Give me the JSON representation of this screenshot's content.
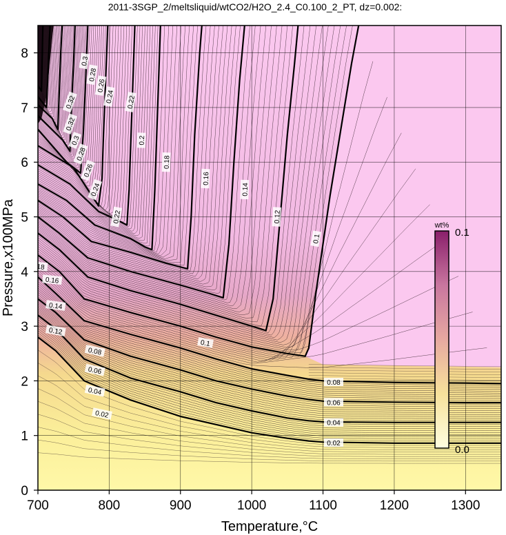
{
  "chart_data": {
    "type": "contour",
    "title": "2011-3SGP_2/meltsliquid/wtCO2/H2O_2.4_C0.100_2_PT, dz=0.002:",
    "xlabel": "Temperature,°C",
    "ylabel": "Pressure,x100MPa",
    "xlim": [
      700,
      1350
    ],
    "ylim": [
      0,
      8.5
    ],
    "x_ticks": [
      700,
      800,
      900,
      1000,
      1100,
      1200,
      1300
    ],
    "y_ticks": [
      0,
      1,
      2,
      3,
      4,
      5,
      6,
      7,
      8
    ],
    "grid": true,
    "colorbar": {
      "unit": "wt%",
      "max_label": "0.1",
      "min_label": "0.0",
      "range": [
        0.0,
        0.1
      ],
      "colors": [
        "#fffde0",
        "#f7e29b",
        "#e7a9a0",
        "#c9769f",
        "#8a1f6b"
      ]
    },
    "high_value_fill_color": "#fbc8ef",
    "contour_interval": 0.002,
    "labeled_contours": [
      {
        "level": 0.02,
        "label": "0.02",
        "points": [
          [
            700,
            2.8
          ],
          [
            725,
            2.55
          ],
          [
            765,
            2.0
          ],
          [
            830,
            1.65
          ],
          [
            900,
            1.35
          ],
          [
            950,
            1.2
          ],
          [
            1000,
            1.05
          ],
          [
            1050,
            0.95
          ],
          [
            1080,
            0.9
          ],
          [
            1100,
            0.88
          ],
          [
            1200,
            0.86
          ],
          [
            1300,
            0.86
          ],
          [
            1350,
            0.86
          ]
        ]
      },
      {
        "level": 0.04,
        "label": "0.04",
        "points": [
          [
            700,
            3.2
          ],
          [
            725,
            2.95
          ],
          [
            765,
            2.4
          ],
          [
            830,
            2.05
          ],
          [
            900,
            1.8
          ],
          [
            950,
            1.6
          ],
          [
            1000,
            1.45
          ],
          [
            1050,
            1.32
          ],
          [
            1080,
            1.27
          ],
          [
            1100,
            1.25
          ],
          [
            1200,
            1.24
          ],
          [
            1300,
            1.24
          ],
          [
            1350,
            1.24
          ]
        ]
      },
      {
        "level": 0.06,
        "label": "0.06",
        "points": [
          [
            700,
            3.5
          ],
          [
            725,
            3.25
          ],
          [
            765,
            2.75
          ],
          [
            830,
            2.45
          ],
          [
            900,
            2.2
          ],
          [
            950,
            2.0
          ],
          [
            1000,
            1.85
          ],
          [
            1050,
            1.72
          ],
          [
            1080,
            1.66
          ],
          [
            1100,
            1.63
          ],
          [
            1200,
            1.61
          ],
          [
            1300,
            1.6
          ],
          [
            1350,
            1.6
          ]
        ]
      },
      {
        "level": 0.08,
        "label": "0.08",
        "points": [
          [
            700,
            3.9
          ],
          [
            725,
            3.6
          ],
          [
            765,
            3.1
          ],
          [
            830,
            2.85
          ],
          [
            900,
            2.6
          ],
          [
            950,
            2.4
          ],
          [
            1000,
            2.22
          ],
          [
            1050,
            2.1
          ],
          [
            1080,
            2.03
          ],
          [
            1100,
            2.0
          ],
          [
            1200,
            1.97
          ],
          [
            1300,
            1.96
          ],
          [
            1350,
            1.95
          ]
        ]
      },
      {
        "level": 0.1,
        "label": "0.1",
        "points": [
          [
            700,
            4.3
          ],
          [
            730,
            4.0
          ],
          [
            765,
            3.5
          ],
          [
            830,
            3.25
          ],
          [
            900,
            3.0
          ],
          [
            950,
            2.8
          ],
          [
            1000,
            2.62
          ],
          [
            1050,
            2.5
          ],
          [
            1075,
            2.45
          ],
          [
            1080,
            2.6
          ],
          [
            1090,
            3.6
          ],
          [
            1100,
            4.5
          ],
          [
            1110,
            5.4
          ],
          [
            1125,
            6.6
          ],
          [
            1140,
            7.8
          ],
          [
            1150,
            8.5
          ]
        ]
      },
      {
        "level": 0.12,
        "label": "0.12",
        "points": [
          [
            700,
            4.7
          ],
          [
            730,
            4.4
          ],
          [
            770,
            3.9
          ],
          [
            830,
            3.65
          ],
          [
            900,
            3.4
          ],
          [
            950,
            3.2
          ],
          [
            1000,
            3.0
          ],
          [
            1020,
            2.92
          ],
          [
            1030,
            3.5
          ],
          [
            1040,
            5.0
          ],
          [
            1050,
            6.5
          ],
          [
            1060,
            7.8
          ],
          [
            1065,
            8.5
          ]
        ]
      },
      {
        "level": 0.14,
        "label": "0.14",
        "points": [
          [
            700,
            5.0
          ],
          [
            730,
            4.7
          ],
          [
            770,
            4.25
          ],
          [
            830,
            4.0
          ],
          [
            900,
            3.75
          ],
          [
            940,
            3.6
          ],
          [
            960,
            3.52
          ],
          [
            968,
            4.5
          ],
          [
            975,
            6.0
          ],
          [
            983,
            7.5
          ],
          [
            990,
            8.5
          ]
        ]
      },
      {
        "level": 0.16,
        "label": "0.16",
        "points": [
          [
            700,
            5.3
          ],
          [
            735,
            5.0
          ],
          [
            775,
            4.55
          ],
          [
            830,
            4.35
          ],
          [
            880,
            4.15
          ],
          [
            910,
            4.05
          ],
          [
            915,
            5.0
          ],
          [
            920,
            6.5
          ],
          [
            927,
            8.0
          ],
          [
            930,
            8.5
          ]
        ]
      },
      {
        "level": 0.18,
        "label": "0.18",
        "points": [
          [
            700,
            5.6
          ],
          [
            740,
            5.3
          ],
          [
            780,
            4.85
          ],
          [
            830,
            4.6
          ],
          [
            850,
            4.45
          ],
          [
            860,
            4.4
          ],
          [
            864,
            5.5
          ],
          [
            868,
            7.0
          ],
          [
            872,
            8.5
          ]
        ]
      },
      {
        "level": 0.2,
        "label": "0.2",
        "points": [
          [
            700,
            5.95
          ],
          [
            745,
            5.6
          ],
          [
            785,
            5.1
          ],
          [
            810,
            4.95
          ],
          [
            825,
            4.85
          ],
          [
            828,
            5.5
          ],
          [
            832,
            7.0
          ],
          [
            836,
            8.5
          ]
        ]
      },
      {
        "level": 0.22,
        "label": "0.22",
        "points": [
          [
            700,
            6.3
          ],
          [
            750,
            5.9
          ],
          [
            785,
            5.2
          ],
          [
            790,
            5.7
          ],
          [
            792,
            6.5
          ],
          [
            795,
            7.5
          ],
          [
            798,
            8.5
          ]
        ]
      },
      {
        "level": 0.24,
        "label": "0.24",
        "points": [
          [
            700,
            6.6
          ],
          [
            740,
            6.0
          ],
          [
            760,
            5.8
          ],
          [
            764,
            6.6
          ],
          [
            767,
            7.5
          ],
          [
            770,
            8.5
          ]
        ]
      },
      {
        "level": 0.26,
        "label": "0.26",
        "points": [
          [
            700,
            6.85
          ],
          [
            735,
            6.4
          ],
          [
            745,
            6.2
          ],
          [
            747,
            7.0
          ],
          [
            750,
            7.8
          ],
          [
            752,
            8.5
          ]
        ]
      },
      {
        "level": 0.28,
        "label": "0.28",
        "points": [
          [
            700,
            7.05
          ],
          [
            720,
            6.8
          ],
          [
            728,
            6.6
          ],
          [
            730,
            7.3
          ],
          [
            732,
            8.0
          ],
          [
            734,
            8.5
          ]
        ]
      },
      {
        "level": 0.3,
        "label": "0.3",
        "points": [
          [
            700,
            7.2
          ],
          [
            712,
            7.0
          ],
          [
            714,
            7.6
          ],
          [
            716,
            8.2
          ],
          [
            717,
            8.5
          ]
        ]
      },
      {
        "level": 0.32,
        "label": "0.32",
        "points": [
          [
            700,
            7.4
          ],
          [
            705,
            7.3
          ],
          [
            706,
            7.9
          ],
          [
            707,
            8.5
          ]
        ]
      }
    ],
    "contour_labels_on_plot": [
      {
        "text": "0.02",
        "x": 790,
        "y": 1.4,
        "rotate": 12
      },
      {
        "text": "0.02",
        "x": 1115,
        "y": 0.87,
        "rotate": 0
      },
      {
        "text": "0.04",
        "x": 780,
        "y": 1.82,
        "rotate": 12
      },
      {
        "text": "0.04",
        "x": 1115,
        "y": 1.24,
        "rotate": 0
      },
      {
        "text": "0.06",
        "x": 780,
        "y": 2.2,
        "rotate": 12
      },
      {
        "text": "0.06",
        "x": 1115,
        "y": 1.61,
        "rotate": 0
      },
      {
        "text": "0.08",
        "x": 780,
        "y": 2.55,
        "rotate": 12
      },
      {
        "text": "0.08",
        "x": 1115,
        "y": 1.98,
        "rotate": 0
      },
      {
        "text": "0.1",
        "x": 935,
        "y": 2.7,
        "rotate": 10
      },
      {
        "text": "0.1",
        "x": 1090,
        "y": 4.6,
        "rotate": -80
      },
      {
        "text": "0.12",
        "x": 725,
        "y": 2.92,
        "rotate": 10
      },
      {
        "text": "0.12",
        "x": 1035,
        "y": 5.0,
        "rotate": -87
      },
      {
        "text": "0.14",
        "x": 725,
        "y": 3.38,
        "rotate": 8
      },
      {
        "text": "0.14",
        "x": 990,
        "y": 5.5,
        "rotate": -88
      },
      {
        "text": "0.16",
        "x": 720,
        "y": 3.85,
        "rotate": 6
      },
      {
        "text": "0.16",
        "x": 935,
        "y": 5.7,
        "rotate": -88
      },
      {
        "text": "0.18",
        "x": 700,
        "y": 4.1,
        "rotate": 6
      },
      {
        "text": "0.18",
        "x": 880,
        "y": 6.0,
        "rotate": -88
      },
      {
        "text": "0.2",
        "x": 685,
        "y": 4.45,
        "rotate": 8
      },
      {
        "text": "0.2",
        "x": 845,
        "y": 6.4,
        "rotate": -88
      },
      {
        "text": "0.22",
        "x": 810,
        "y": 5.0,
        "rotate": -80
      },
      {
        "text": "0.22",
        "x": 830,
        "y": 7.1,
        "rotate": -80
      },
      {
        "text": "0.24",
        "x": 780,
        "y": 5.5,
        "rotate": -70
      },
      {
        "text": "0.24",
        "x": 800,
        "y": 7.2,
        "rotate": -80
      },
      {
        "text": "0.26",
        "x": 770,
        "y": 5.85,
        "rotate": -70
      },
      {
        "text": "0.26",
        "x": 788,
        "y": 7.4,
        "rotate": -80
      },
      {
        "text": "0.28",
        "x": 760,
        "y": 6.15,
        "rotate": -70
      },
      {
        "text": "0.28",
        "x": 776,
        "y": 7.6,
        "rotate": -80
      },
      {
        "text": "0.3",
        "x": 752,
        "y": 6.4,
        "rotate": -70
      },
      {
        "text": "0.3",
        "x": 765,
        "y": 7.85,
        "rotate": -80
      },
      {
        "text": "0.32",
        "x": 745,
        "y": 6.7,
        "rotate": -70
      },
      {
        "text": "0.32",
        "x": 745,
        "y": 7.1,
        "rotate": -70
      }
    ]
  }
}
